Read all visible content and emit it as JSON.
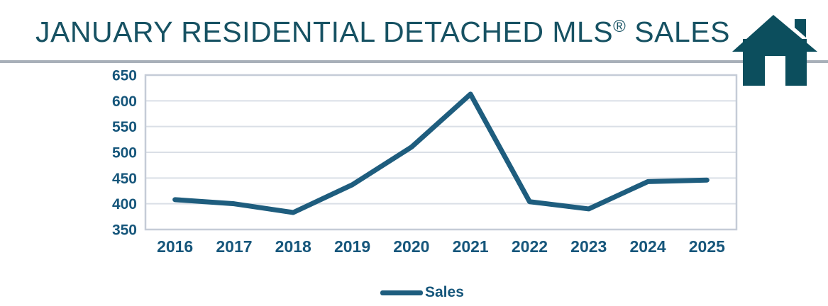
{
  "header": {
    "title_main": "JANUARY RESIDENTIAL DETACHED MLS",
    "title_reg": "®",
    "title_suffix": " SALES"
  },
  "icons": {
    "house": "house-icon"
  },
  "legend": {
    "label": "Sales"
  },
  "chart_data": {
    "type": "line",
    "title": "JANUARY RESIDENTIAL DETACHED MLS® SALES",
    "categories": [
      "2016",
      "2017",
      "2018",
      "2019",
      "2020",
      "2021",
      "2022",
      "2023",
      "2024",
      "2025"
    ],
    "series": [
      {
        "name": "Sales",
        "values": [
          408,
          400,
          383,
          437,
          510,
          613,
          404,
          390,
          443,
          446
        ]
      }
    ],
    "xlabel": "",
    "ylabel": "",
    "ylim": [
      350,
      650
    ],
    "yticks": [
      350,
      400,
      450,
      500,
      550,
      600,
      650
    ],
    "grid": "horizontal",
    "legend_position": "bottom-center",
    "colors": {
      "line": "#1e5d7e",
      "axis_text": "#16567b",
      "title_text": "#175263",
      "gridline": "#dadfe6",
      "plot_border": "#c5ccd7",
      "title_underline": "#a8b0b9",
      "house_icon": "#0c4e5d",
      "background": "#ffffff"
    }
  }
}
